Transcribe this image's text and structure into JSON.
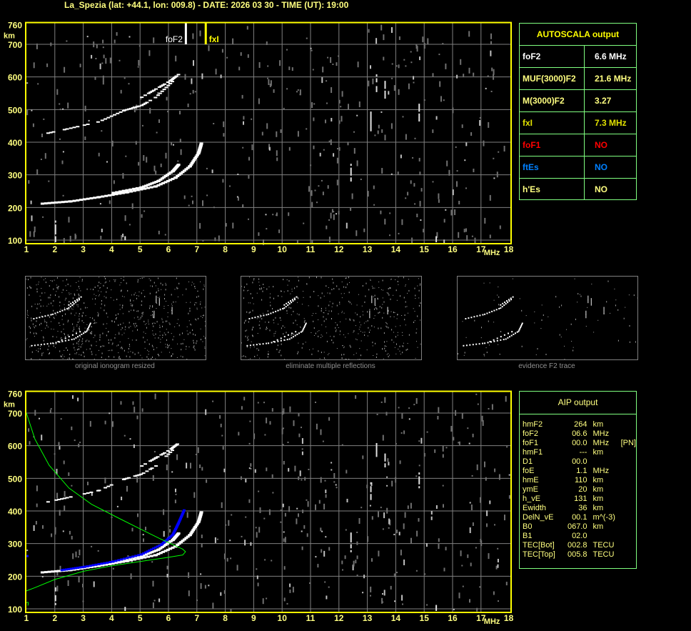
{
  "title": "La_Spezia (lat: +44.1, lon: 009.8) - DATE: 2026 03 30 - TIME (UT): 19:00",
  "axes": {
    "y_unit": "km",
    "x_unit": "MHz",
    "y_ticks": [
      "760",
      "700",
      "600",
      "500",
      "400",
      "300",
      "200",
      "100"
    ],
    "x_ticks": [
      "1",
      "2",
      "3",
      "4",
      "5",
      "6",
      "7",
      "8",
      "9",
      "10",
      "11",
      "12",
      "13",
      "14",
      "15",
      "16",
      "17",
      "18"
    ]
  },
  "markers": {
    "foF2_label": "foF2",
    "fxI_label": "fxI"
  },
  "autoscala": {
    "title": "AUTOSCALA output",
    "rows": [
      {
        "key": "foF2",
        "value": "6.6 MHz",
        "color": "#ffffff"
      },
      {
        "key": "MUF(3000)F2",
        "value": "21.6 MHz",
        "color": "#ffff80"
      },
      {
        "key": "M(3000)F2",
        "value": "3.27",
        "color": "#ffff80"
      },
      {
        "key": "fxI",
        "value": "7.3 MHz",
        "color": "#e0e000"
      },
      {
        "key": "foF1",
        "value": "NO",
        "color": "#ff0000"
      },
      {
        "key": "ftEs",
        "value": "NO",
        "color": "#0080ff"
      },
      {
        "key": "h'Es",
        "value": "NO",
        "color": "#ffff80"
      }
    ]
  },
  "thumbnails": [
    {
      "caption": "original ionogram resized"
    },
    {
      "caption": "eliminate multiple reflections"
    },
    {
      "caption": "evidence F2 trace"
    }
  ],
  "aip": {
    "title": "AIP output",
    "rows": [
      {
        "name": "hmF2",
        "value": "264",
        "unit": "km",
        "extra": ""
      },
      {
        "name": "foF2",
        "value": "06.6",
        "unit": "MHz",
        "extra": ""
      },
      {
        "name": "foF1",
        "value": "00.0",
        "unit": "MHz",
        "extra": "[PN]"
      },
      {
        "name": "hmF1",
        "value": "---",
        "unit": "km",
        "extra": ""
      },
      {
        "name": "D1",
        "value": "00.0",
        "unit": "",
        "extra": ""
      },
      {
        "name": "foE",
        "value": "1.1",
        "unit": "MHz",
        "extra": ""
      },
      {
        "name": "hmE",
        "value": "110",
        "unit": "km",
        "extra": ""
      },
      {
        "name": "ymE",
        "value": "20",
        "unit": "km",
        "extra": ""
      },
      {
        "name": "h_vE",
        "value": "131",
        "unit": "km",
        "extra": ""
      },
      {
        "name": "Ewidth",
        "value": "36",
        "unit": "km",
        "extra": ""
      },
      {
        "name": "DelN_vE",
        "value": "00.1",
        "unit": "m^(-3)",
        "extra": ""
      },
      {
        "name": "B0",
        "value": "067.0",
        "unit": "km",
        "extra": ""
      },
      {
        "name": "B1",
        "value": "02.0",
        "unit": "",
        "extra": ""
      },
      {
        "name": "TEC[Bot]",
        "value": "002.8",
        "unit": "TECU",
        "extra": ""
      },
      {
        "name": "TEC[Top]",
        "value": "005.8",
        "unit": "TECU",
        "extra": ""
      }
    ]
  },
  "chart_data": {
    "type": "scatter",
    "xlabel": "MHz",
    "ylabel": "km",
    "xlim": [
      1,
      18
    ],
    "ylim": [
      100,
      760
    ],
    "grid": true,
    "colors": {
      "frame": "#ffff00",
      "grid": "#808080",
      "trace": "#ffffff",
      "profile": "#00ff00",
      "aip_trace": "#0000ff"
    },
    "foF2_MHz": 6.6,
    "fxI_MHz": 7.3
  }
}
